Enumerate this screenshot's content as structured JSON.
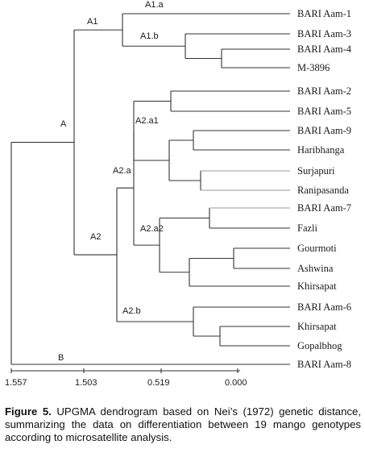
{
  "leaves": [
    "BARI Aam-1",
    "BARI Aam-3",
    "BARI Aam-4",
    "M-3896",
    "BARI Aam-2",
    "BARI Aam-5",
    "BARI Aam-9",
    "Haribhanga",
    "Surjapuri",
    "Ranipasanda",
    "BARI Aam-7",
    "Fazli",
    "Gourmoti",
    "Ashwina",
    "Khirsapat",
    "BARI Aam-6",
    "Khirsapat",
    "Gopalbhog",
    "BARI Aam-8"
  ],
  "clusters": [
    "A1.a",
    "A1",
    "A1.b",
    "A",
    "A2.a1",
    "A2.a",
    "A2.a2",
    "A2",
    "A2.b",
    "B"
  ],
  "axis": {
    "ticks": [
      "1.557",
      "1.503",
      "0.519",
      "0.000"
    ]
  },
  "caption": {
    "label": "Figure 5.",
    "text": " UPGMA dendrogram based on Nei’s (1972) genetic distance, summarizing the data on differentiation between 19 mango genotypes according to microsatellite analysis."
  },
  "colors": {
    "line": "#333333",
    "text": "#1a1a1a"
  }
}
